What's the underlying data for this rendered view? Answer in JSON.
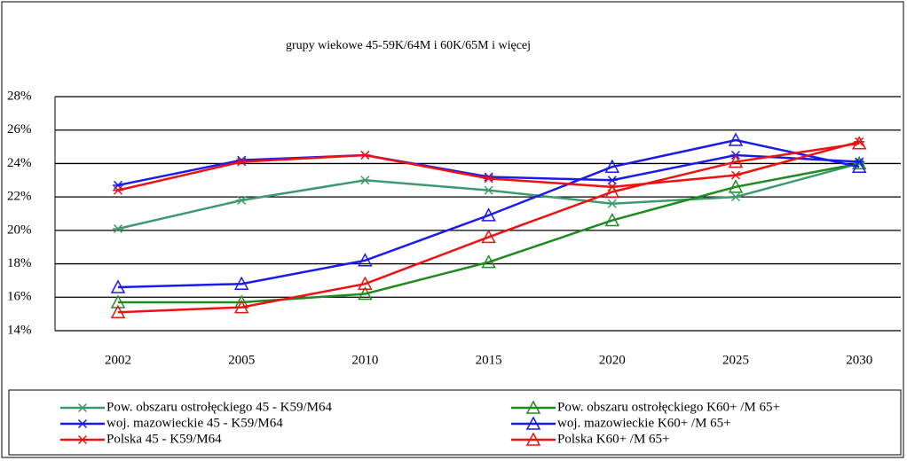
{
  "chart_data": {
    "type": "line",
    "title": "grupy wiekowe 45-59K/64M i 60K/65M i więcej",
    "categories": [
      "2002",
      "2005",
      "2010",
      "2015",
      "2020",
      "2025",
      "2030"
    ],
    "ylim": [
      14,
      28
    ],
    "yticks": [
      {
        "value": 14,
        "label": "14%"
      },
      {
        "value": 16,
        "label": "16%"
      },
      {
        "value": 18,
        "label": "18%"
      },
      {
        "value": 20,
        "label": "20%"
      },
      {
        "value": 22,
        "label": "22%"
      },
      {
        "value": 24,
        "label": "24%"
      },
      {
        "value": 26,
        "label": "26%"
      },
      {
        "value": 28,
        "label": "28%"
      }
    ],
    "grid": true,
    "series": [
      {
        "name": "Pow. obszaru ostrołęckiego 45 - K59/M64",
        "color": "#3c9a6e",
        "marker": "star",
        "values": [
          20.1,
          21.8,
          23.0,
          22.4,
          21.6,
          22.0,
          24.0
        ]
      },
      {
        "name": "Pow. obszaru ostrołęckiego K60+ /M 65+",
        "color": "#1f8a1f",
        "marker": "triangle",
        "values": [
          15.7,
          15.7,
          16.2,
          18.1,
          20.6,
          22.6,
          24.0
        ]
      },
      {
        "name": "woj. mazowieckie 45 - K59/M64",
        "color": "#1a1aee",
        "marker": "star",
        "values": [
          22.7,
          24.2,
          24.5,
          23.2,
          23.0,
          24.5,
          24.1
        ]
      },
      {
        "name": "woj. mazowieckie K60+ /M 65+",
        "color": "#1a1aee",
        "marker": "triangle",
        "values": [
          16.6,
          16.8,
          18.2,
          20.9,
          23.8,
          25.4,
          23.8
        ]
      },
      {
        "name": "Polska 45 - K59/M64",
        "color": "#ee1111",
        "marker": "star",
        "values": [
          22.4,
          24.1,
          24.5,
          23.1,
          22.6,
          23.3,
          25.3
        ]
      },
      {
        "name": "Polska K60+ /M 65+",
        "color": "#ee1111",
        "marker": "triangle",
        "values": [
          15.1,
          15.4,
          16.8,
          19.6,
          22.3,
          24.1,
          25.2
        ]
      }
    ]
  }
}
